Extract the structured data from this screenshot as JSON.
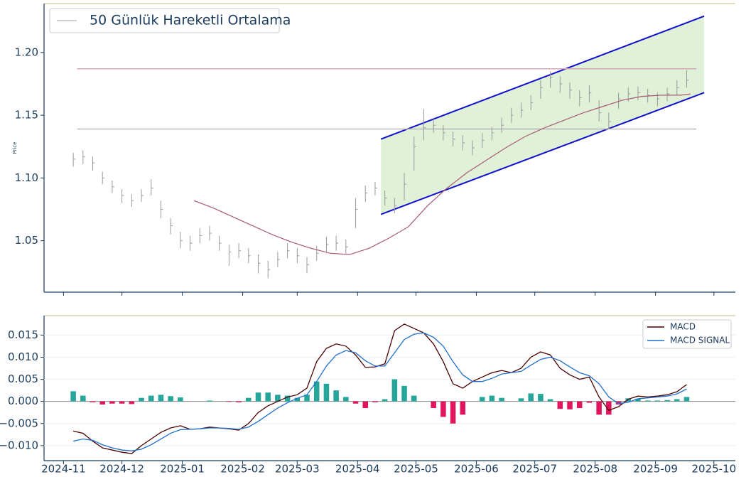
{
  "chart_data": [
    {
      "type": "ohlc",
      "ylabel": "Price",
      "x": [
        5,
        10,
        15,
        20,
        25,
        30,
        35,
        40,
        45,
        50,
        55,
        60,
        65,
        70,
        75,
        80,
        85,
        90,
        95,
        100,
        105,
        110,
        115,
        120,
        125,
        130,
        135,
        140,
        145,
        150,
        155,
        160,
        165,
        170,
        175,
        180,
        185,
        190,
        195,
        200,
        205,
        210,
        215,
        220,
        225,
        230,
        235,
        240,
        245,
        250,
        255,
        260,
        265,
        270,
        275,
        280,
        285,
        290,
        295,
        300,
        305,
        310,
        315,
        320
      ],
      "high": [
        1.12,
        1.122,
        1.117,
        1.105,
        1.098,
        1.091,
        1.087,
        1.091,
        1.099,
        1.082,
        1.068,
        1.057,
        1.054,
        1.06,
        1.062,
        1.054,
        1.047,
        1.048,
        1.044,
        1.039,
        1.034,
        1.041,
        1.048,
        1.044,
        1.037,
        1.046,
        1.053,
        1.054,
        1.051,
        1.084,
        1.094,
        1.097,
        1.09,
        1.084,
        1.104,
        1.133,
        1.155,
        1.147,
        1.142,
        1.137,
        1.134,
        1.13,
        1.136,
        1.141,
        1.148,
        1.156,
        1.16,
        1.166,
        1.178,
        1.185,
        1.181,
        1.176,
        1.17,
        1.174,
        1.162,
        1.152,
        1.168,
        1.172,
        1.173,
        1.171,
        1.168,
        1.172,
        1.178,
        1.186
      ],
      "low": [
        1.109,
        1.111,
        1.106,
        1.095,
        1.088,
        1.08,
        1.077,
        1.081,
        1.086,
        1.068,
        1.055,
        1.044,
        1.042,
        1.048,
        1.05,
        1.042,
        1.03,
        1.036,
        1.032,
        1.024,
        1.02,
        1.029,
        1.036,
        1.032,
        1.024,
        1.034,
        1.041,
        1.042,
        1.039,
        1.06,
        1.081,
        1.086,
        1.078,
        1.072,
        1.082,
        1.106,
        1.13,
        1.136,
        1.13,
        1.125,
        1.122,
        1.118,
        1.124,
        1.13,
        1.136,
        1.144,
        1.148,
        1.154,
        1.163,
        1.172,
        1.168,
        1.163,
        1.157,
        1.16,
        1.145,
        1.139,
        1.155,
        1.161,
        1.162,
        1.16,
        1.157,
        1.161,
        1.166,
        1.172
      ],
      "close": [
        1.115,
        1.117,
        1.112,
        1.1,
        1.093,
        1.086,
        1.082,
        1.086,
        1.092,
        1.075,
        1.062,
        1.05,
        1.048,
        1.054,
        1.056,
        1.048,
        1.041,
        1.042,
        1.038,
        1.032,
        1.027,
        1.035,
        1.042,
        1.038,
        1.031,
        1.04,
        1.047,
        1.048,
        1.045,
        1.075,
        1.088,
        1.092,
        1.084,
        1.078,
        1.095,
        1.125,
        1.14,
        1.142,
        1.136,
        1.131,
        1.128,
        1.124,
        1.13,
        1.136,
        1.142,
        1.15,
        1.154,
        1.16,
        1.172,
        1.18,
        1.175,
        1.17,
        1.164,
        1.168,
        1.152,
        1.145,
        1.163,
        1.167,
        1.168,
        1.166,
        1.163,
        1.167,
        1.172,
        1.178
      ],
      "bar_color": "#999999",
      "series": [
        {
          "name": "50 Günlük Hareketli Ortalama",
          "color": "#a85a72",
          "legend_color": "#c0c0c0",
          "x": [
            67,
            77,
            87,
            97,
            107,
            117,
            127,
            137,
            147,
            157,
            167,
            177,
            187,
            197,
            207,
            217,
            227,
            237,
            247,
            257,
            267,
            277,
            287,
            297,
            307,
            317,
            322
          ],
          "values": [
            1.082,
            1.076,
            1.069,
            1.062,
            1.055,
            1.049,
            1.044,
            1.04,
            1.039,
            1.044,
            1.052,
            1.061,
            1.078,
            1.092,
            1.104,
            1.114,
            1.124,
            1.133,
            1.14,
            1.146,
            1.152,
            1.157,
            1.162,
            1.165,
            1.166,
            1.166,
            1.167
          ]
        }
      ],
      "hlines": [
        {
          "value": 1.187,
          "color": "#d4a8b8",
          "x": [
            7,
            325
          ]
        },
        {
          "value": 1.139,
          "color": "#b8b8b8",
          "x": [
            7,
            325
          ]
        }
      ],
      "channel": {
        "x": [
          163,
          329
        ],
        "upper": [
          1.131,
          1.229
        ],
        "lower": [
          1.071,
          1.168
        ],
        "color": "#1010cc",
        "fill": "#d6eccb"
      },
      "legend": "upper left",
      "xlim": [
        -10,
        345
      ],
      "ylim": [
        1.009,
        1.239
      ],
      "yticks": [
        1.05,
        {
          "value": 1.1,
          "label": "1.10"
        },
        1.15,
        {
          "value": 1.2,
          "label": "1.20"
        }
      ]
    },
    {
      "type": "macd",
      "x": [
        5,
        10,
        15,
        20,
        25,
        30,
        35,
        40,
        45,
        50,
        55,
        60,
        65,
        70,
        75,
        80,
        85,
        90,
        95,
        100,
        105,
        110,
        115,
        120,
        125,
        130,
        135,
        140,
        145,
        150,
        155,
        160,
        165,
        170,
        175,
        180,
        185,
        190,
        195,
        200,
        205,
        210,
        215,
        220,
        225,
        230,
        235,
        240,
        245,
        250,
        255,
        260,
        265,
        270,
        275,
        280,
        285,
        290,
        295,
        300,
        305,
        310,
        315,
        320
      ],
      "series": [
        {
          "name": "MACD",
          "color": "#4a0000",
          "values": [
            -0.0067,
            -0.0072,
            -0.009,
            -0.0105,
            -0.011,
            -0.0115,
            -0.0118,
            -0.01,
            -0.0085,
            -0.007,
            -0.006,
            -0.0055,
            -0.0063,
            -0.0062,
            -0.0058,
            -0.006,
            -0.0062,
            -0.0065,
            -0.005,
            -0.0025,
            -0.001,
            0.0,
            0.001,
            0.0015,
            0.003,
            0.009,
            0.012,
            0.013,
            0.0125,
            0.0105,
            0.0077,
            0.0078,
            0.0085,
            0.016,
            0.0175,
            0.0165,
            0.0155,
            0.013,
            0.009,
            0.004,
            0.003,
            0.0045,
            0.0055,
            0.0065,
            0.007,
            0.0065,
            0.0075,
            0.01,
            0.0112,
            0.0105,
            0.0075,
            0.006,
            0.005,
            0.0055,
            0.001,
            -0.002,
            -0.0012,
            0.0005,
            0.0012,
            0.001,
            0.0012,
            0.0015,
            0.0022,
            0.0038
          ]
        },
        {
          "name": "MACD SIGNAL",
          "color": "#1f6fd0",
          "values": [
            -0.009,
            -0.0085,
            -0.0088,
            -0.0098,
            -0.0105,
            -0.011,
            -0.0112,
            -0.0108,
            -0.0098,
            -0.0085,
            -0.0072,
            -0.0064,
            -0.0063,
            -0.0062,
            -0.006,
            -0.006,
            -0.0061,
            -0.0063,
            -0.0058,
            -0.0045,
            -0.003,
            -0.0015,
            -0.0003,
            0.0007,
            0.0015,
            0.0045,
            0.008,
            0.0105,
            0.0115,
            0.011,
            0.0092,
            0.008,
            0.008,
            0.011,
            0.014,
            0.0152,
            0.0155,
            0.0145,
            0.0125,
            0.009,
            0.006,
            0.0045,
            0.0045,
            0.0052,
            0.0062,
            0.0065,
            0.0068,
            0.0082,
            0.0095,
            0.01,
            0.0092,
            0.0078,
            0.0065,
            0.0058,
            0.004,
            0.001,
            -0.0005,
            -0.0002,
            0.0006,
            0.0008,
            0.001,
            0.0012,
            0.0017,
            0.0028
          ]
        }
      ],
      "histogram": {
        "values": [
          0.0023,
          0.0013,
          -0.0002,
          -0.0007,
          -0.0005,
          -0.0005,
          -0.0006,
          0.0008,
          0.0013,
          0.0015,
          0.0012,
          0.0009,
          0.0,
          0.0,
          0.0002,
          0.0,
          -0.0001,
          -0.0002,
          0.0008,
          0.002,
          0.002,
          0.0015,
          0.0013,
          0.0008,
          0.0015,
          0.0045,
          0.004,
          0.0025,
          0.001,
          -0.0005,
          -0.0015,
          -0.0002,
          0.0005,
          0.005,
          0.0035,
          0.0013,
          0.0,
          -0.0015,
          -0.0035,
          -0.005,
          -0.003,
          0.0,
          0.001,
          0.0013,
          0.0008,
          0.0,
          0.0007,
          0.0018,
          0.0017,
          0.0005,
          -0.0017,
          -0.0018,
          -0.0015,
          -0.0003,
          -0.003,
          -0.003,
          -0.0007,
          0.0007,
          0.0006,
          0.0002,
          0.0002,
          0.0003,
          0.0005,
          0.001
        ],
        "positive_color": "#26a69a",
        "negative_color": "#e0155e"
      },
      "legend": "upper right",
      "grid": true,
      "xlim": [
        -10,
        345
      ],
      "ylim": [
        -0.0134,
        0.0194
      ],
      "yticks": [
        0.015,
        {
          "value": 0.01,
          "label": "0.010"
        },
        0.005,
        {
          "value": 0,
          "label": "0.000"
        },
        {
          "value": -0.005,
          "label": "−0.005"
        },
        {
          "value": -0.01,
          "label": "−0.010"
        }
      ],
      "xticks": [
        {
          "value": 0,
          "label": "2024-11"
        },
        {
          "value": 30,
          "label": "2024-12"
        },
        {
          "value": 61,
          "label": "2025-01"
        },
        {
          "value": 92,
          "label": "2025-02"
        },
        {
          "value": 120,
          "label": "2025-03"
        },
        {
          "value": 151,
          "label": "2025-04"
        },
        {
          "value": 181,
          "label": "2025-05"
        },
        {
          "value": 212,
          "label": "2025-06"
        },
        {
          "value": 242,
          "label": "2025-07"
        },
        {
          "value": 273,
          "label": "2025-08"
        },
        {
          "value": 304,
          "label": "2025-09"
        },
        {
          "value": 334,
          "label": "2025-10"
        }
      ]
    }
  ]
}
